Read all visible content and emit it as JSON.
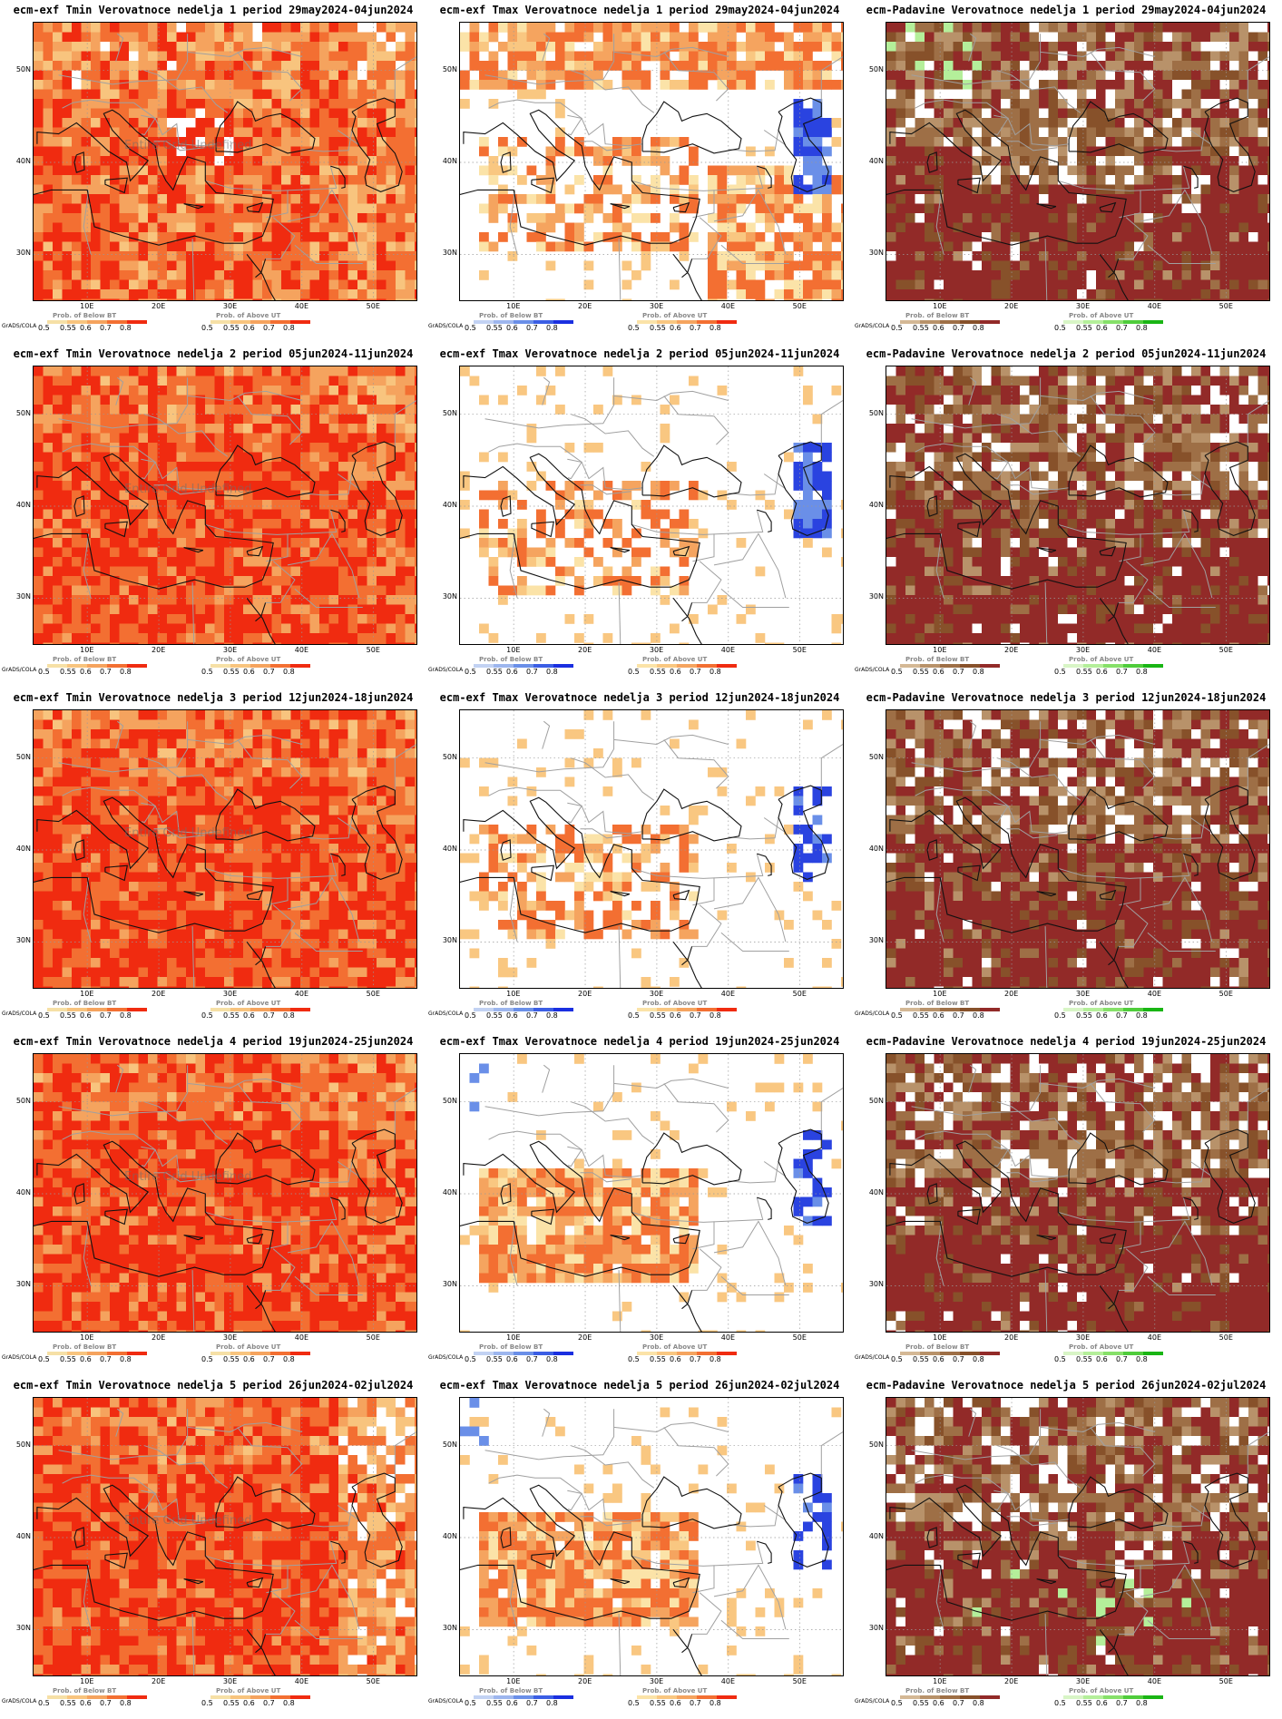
{
  "panels": [
    {
      "title": "ecm-exf Tmin Verovatnoce nedelja 1 period 29may2024-04jun2024",
      "kind": "tmin",
      "week": 1,
      "watermark": "Entire Grid Undefined"
    },
    {
      "title": "ecm-exf Tmax Verovatnoce nedelja 1 period 29may2024-04jun2024",
      "kind": "tmax",
      "week": 1
    },
    {
      "title": "ecm-Padavine Verovatnoce nedelja 1 period 29may2024-04jun2024",
      "kind": "prec",
      "week": 1
    },
    {
      "title": "ecm-exf Tmin Verovatnoce nedelja 2 period 05jun2024-11jun2024",
      "kind": "tmin",
      "week": 2,
      "watermark": "Entire Grid Undefined"
    },
    {
      "title": "ecm-exf Tmax Verovatnoce nedelja 2 period 05jun2024-11jun2024",
      "kind": "tmax",
      "week": 2
    },
    {
      "title": "ecm-Padavine Verovatnoce nedelja 2 period 05jun2024-11jun2024",
      "kind": "prec",
      "week": 2
    },
    {
      "title": "ecm-exf Tmin Verovatnoce nedelja 3 period 12jun2024-18jun2024",
      "kind": "tmin",
      "week": 3,
      "watermark": "Entire Grid Undefined"
    },
    {
      "title": "ecm-exf Tmax Verovatnoce nedelja 3 period 12jun2024-18jun2024",
      "kind": "tmax",
      "week": 3
    },
    {
      "title": "ecm-Padavine Verovatnoce nedelja 3 period 12jun2024-18jun2024",
      "kind": "prec",
      "week": 3
    },
    {
      "title": "ecm-exf Tmin Verovatnoce nedelja 4 period 19jun2024-25jun2024",
      "kind": "tmin",
      "week": 4,
      "watermark": "Entire Grid Undefined"
    },
    {
      "title": "ecm-exf Tmax Verovatnoce nedelja 4 period 19jun2024-25jun2024",
      "kind": "tmax",
      "week": 4
    },
    {
      "title": "ecm-Padavine Verovatnoce nedelja 4 period 19jun2024-25jun2024",
      "kind": "prec",
      "week": 4
    },
    {
      "title": "ecm-exf Tmin Verovatnoce nedelja 5 period 26jun2024-02jul2024",
      "kind": "tmin",
      "week": 5,
      "watermark": "Entire Grid Undefined"
    },
    {
      "title": "ecm-exf Tmax Verovatnoce nedelja 5 period 26jun2024-02jul2024",
      "kind": "tmax",
      "week": 5
    },
    {
      "title": "ecm-Padavine Verovatnoce nedelja 5 period 26jun2024-02jul2024",
      "kind": "prec",
      "week": 5
    }
  ],
  "axes": {
    "lat_ticks": [
      "30N",
      "40N",
      "50N"
    ],
    "lon_ticks": [
      "10E",
      "20E",
      "30E",
      "40E",
      "50E"
    ]
  },
  "credit": "GrADS/COLA",
  "colorbars": {
    "below_title": "Prob. of Below BT",
    "above_title": "Prob. of Above UT",
    "ticks": [
      "0.5",
      "0.55",
      "0.6",
      "0.7",
      "0.8"
    ],
    "tmin_left": [
      "#f6e0a6",
      "#f8c47e",
      "#f5a35e",
      "#f36f32",
      "#f02b10"
    ],
    "tmin_right": [
      "#f6e0a6",
      "#f8c47e",
      "#f5a35e",
      "#f36f32",
      "#f02b10"
    ],
    "tmax_left": [
      "#c2d2f3",
      "#9db6ee",
      "#6a8fe8",
      "#3b5ee4",
      "#1a2fe0"
    ],
    "tmax_right": [
      "#fbe3a8",
      "#f9c781",
      "#f5a45f",
      "#f36f32",
      "#f02b10"
    ],
    "prec_left": [
      "#d4b895",
      "#b8926a",
      "#9e6f46",
      "#87512a",
      "#922a28"
    ],
    "prec_right": [
      "#d8f5c6",
      "#b4ef9a",
      "#86e069",
      "#4fcc3b",
      "#19b514"
    ]
  },
  "map_colors": {
    "land_line": "#a0a0a0",
    "coast_line": "#111111",
    "grid_line": "#999999",
    "tmin_fill": [
      "#f02b10",
      "#f36f32",
      "#f5a35e",
      "#f8c47e",
      "#ffffff"
    ],
    "tmax_fill": [
      "#ffffff",
      "#fbe3a8",
      "#f9c781",
      "#f5a45f",
      "#f36f32",
      "#6a8fe8",
      "#2a43e0"
    ],
    "prec_fill": [
      "#922a28",
      "#87512a",
      "#9e6f46",
      "#b8926a",
      "#ffffff",
      "#b4ef9a"
    ]
  }
}
